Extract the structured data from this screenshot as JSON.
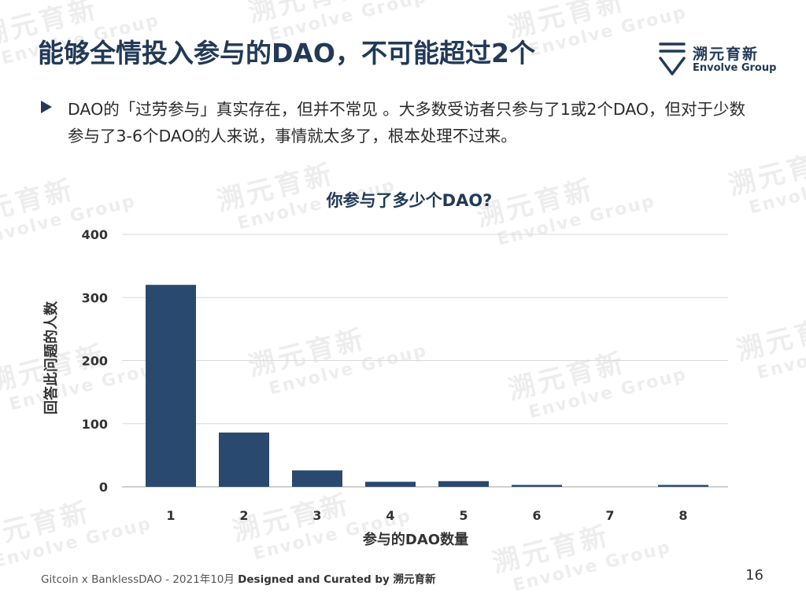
{
  "slide": {
    "title": "能够全情投入参与的DAO，不可能超过2个",
    "bullet": "DAO的「过劳参与」真实存在，但并不常见 。大多数受访者只参与了1或2个DAO，但对于少数参与了3-6个DAO的人来说，事情就太多了，根本处理不过来。",
    "page_number": "16"
  },
  "logo": {
    "cn": "溯元育新",
    "en": "Envolve Group"
  },
  "watermark": {
    "cn": "溯元育新",
    "en": "Envolve Group"
  },
  "footer": {
    "source": "Gitcoin x BanklessDAO - 2021年10月 ",
    "credit": "Designed and Curated by 溯元育新"
  },
  "colors": {
    "accent": "#223a57",
    "bar": "#294a6e",
    "grid": "#d9d9d9"
  },
  "chart_data": {
    "type": "bar",
    "title": "你参与了多少个DAO?",
    "xlabel": "参与的DAO数量",
    "ylabel": "回答此问题的人数",
    "categories": [
      "1",
      "2",
      "3",
      "4",
      "5",
      "6",
      "7",
      "8"
    ],
    "values": [
      320,
      86,
      26,
      8,
      9,
      3,
      0,
      3
    ],
    "ylim": [
      0,
      400
    ],
    "yticks": [
      0,
      100,
      200,
      300,
      400
    ],
    "grid": true,
    "legend": "none"
  }
}
